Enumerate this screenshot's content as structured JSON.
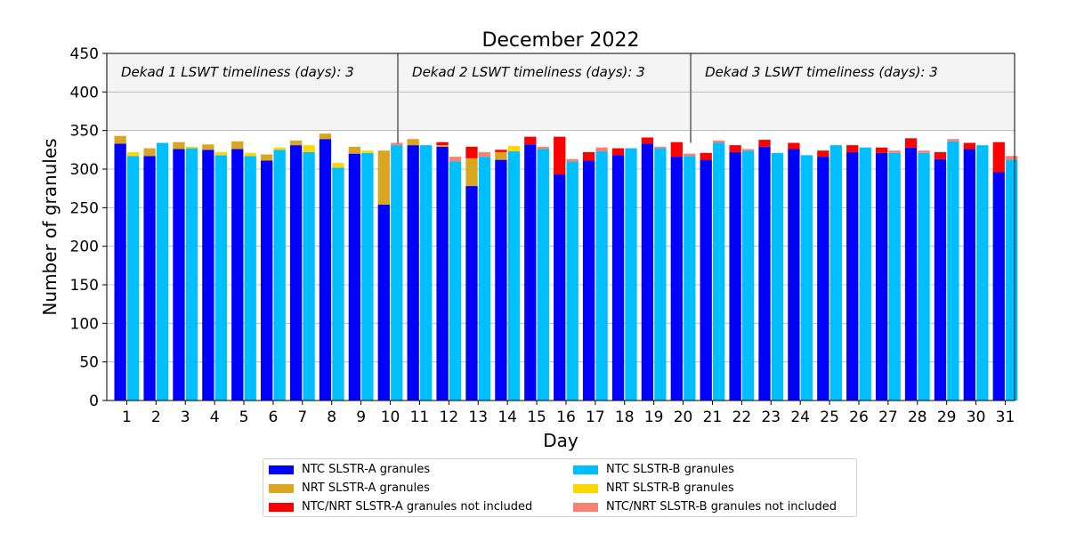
{
  "chart_data": {
    "type": "bar",
    "title": "December 2022",
    "xlabel": "Day",
    "ylabel": "Number of granules",
    "ylim": [
      0,
      450
    ],
    "yticks": [
      0,
      50,
      100,
      150,
      200,
      250,
      300,
      350,
      400,
      450
    ],
    "grid": true,
    "legend_placement": "bottom-center",
    "categories": [
      "1",
      "2",
      "3",
      "4",
      "5",
      "6",
      "7",
      "8",
      "9",
      "10",
      "11",
      "12",
      "13",
      "14",
      "15",
      "16",
      "17",
      "18",
      "19",
      "20",
      "21",
      "22",
      "23",
      "24",
      "25",
      "26",
      "27",
      "28",
      "29",
      "30",
      "31"
    ],
    "shaded_band": [
      350,
      450
    ],
    "dekad_separators_after_day": [
      10,
      20
    ],
    "annotations": [
      {
        "text": "Dekad 1 LSWT timeliness (days): 3",
        "start_day": 1
      },
      {
        "text": "Dekad 2 LSWT timeliness (days): 3",
        "start_day": 11
      },
      {
        "text": "Dekad 3 LSWT timeliness (days): 3",
        "start_day": 21
      }
    ],
    "stacks": {
      "SLSTR-A": [
        "NTC SLSTR-A granules",
        "NRT SLSTR-A granules",
        "NTC/NRT SLSTR-A granules not included"
      ],
      "SLSTR-B": [
        "NTC SLSTR-B granules",
        "NRT SLSTR-B granules",
        "NTC/NRT SLSTR-B granules not included"
      ]
    },
    "series": [
      {
        "name": "NTC SLSTR-A granules",
        "color": "#0000ff",
        "stack": "SLSTR-A",
        "values": [
          333,
          317,
          326,
          325,
          326,
          311,
          331,
          339,
          320,
          254,
          331,
          329,
          278,
          312,
          332,
          293,
          311,
          318,
          333,
          316,
          312,
          322,
          329,
          326,
          316,
          322,
          321,
          328,
          313,
          326,
          296
        ]
      },
      {
        "name": "NRT SLSTR-A granules",
        "color": "#daa520",
        "stack": "SLSTR-A",
        "values": [
          10,
          10,
          9,
          7,
          10,
          8,
          6,
          7,
          9,
          70,
          8,
          2,
          36,
          10,
          0,
          0,
          0,
          0,
          0,
          0,
          0,
          0,
          0,
          0,
          0,
          0,
          0,
          0,
          0,
          0,
          0
        ]
      },
      {
        "name": "NTC/NRT SLSTR-A granules not included",
        "color": "#ff0000",
        "stack": "SLSTR-A",
        "values": [
          0,
          0,
          0,
          0,
          0,
          0,
          0,
          0,
          0,
          0,
          0,
          4,
          15,
          3,
          10,
          49,
          11,
          9,
          8,
          19,
          9,
          9,
          9,
          8,
          8,
          9,
          7,
          12,
          9,
          8,
          39
        ]
      },
      {
        "name": "NTC SLSTR-B granules",
        "color": "#00bfff",
        "stack": "SLSTR-B",
        "values": [
          317,
          334,
          327,
          318,
          317,
          325,
          322,
          302,
          321,
          331,
          331,
          310,
          316,
          323,
          326,
          310,
          323,
          327,
          327,
          317,
          334,
          324,
          321,
          318,
          331,
          328,
          321,
          321,
          336,
          331,
          312
        ]
      },
      {
        "name": "NRT SLSTR-B granules",
        "color": "#ffd700",
        "stack": "SLSTR-B",
        "values": [
          5,
          0,
          2,
          4,
          4,
          3,
          9,
          6,
          3,
          0,
          0,
          0,
          0,
          7,
          0,
          0,
          0,
          0,
          0,
          0,
          0,
          0,
          0,
          0,
          0,
          0,
          0,
          0,
          0,
          0,
          0
        ]
      },
      {
        "name": "NTC/NRT SLSTR-B granules not included",
        "color": "#fa8072",
        "stack": "SLSTR-B",
        "values": [
          0,
          0,
          0,
          0,
          0,
          0,
          0,
          0,
          0,
          3,
          0,
          6,
          6,
          0,
          3,
          3,
          5,
          0,
          2,
          3,
          3,
          2,
          0,
          0,
          0,
          0,
          3,
          3,
          3,
          0,
          5
        ]
      }
    ]
  }
}
